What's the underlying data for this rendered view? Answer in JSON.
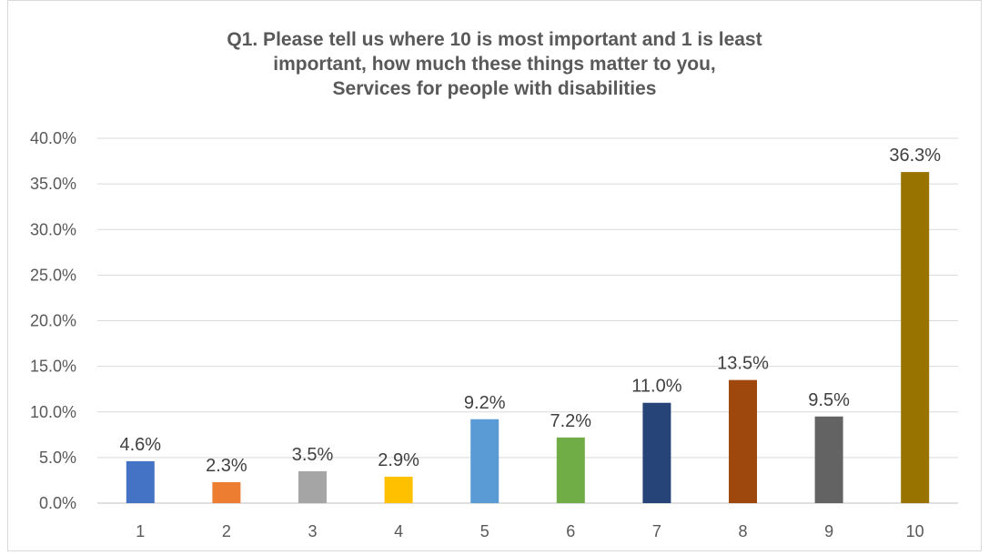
{
  "chart_data": {
    "type": "bar",
    "title_lines": [
      "Q1. Please tell us where 10 is most important and 1 is least",
      "important, how much these things matter to you,",
      "Services for people with disabilities"
    ],
    "categories": [
      "1",
      "2",
      "3",
      "4",
      "5",
      "6",
      "7",
      "8",
      "9",
      "10"
    ],
    "values": [
      4.6,
      2.3,
      3.5,
      2.9,
      9.2,
      7.2,
      11.0,
      13.5,
      9.5,
      36.3
    ],
    "data_labels": [
      "4.6%",
      "2.3%",
      "3.5%",
      "2.9%",
      "9.2%",
      "7.2%",
      "11.0%",
      "13.5%",
      "9.5%",
      "36.3%"
    ],
    "colors": [
      "#4472c4",
      "#ed7d31",
      "#a5a5a5",
      "#ffc000",
      "#5b9bd5",
      "#70ad47",
      "#264478",
      "#9e480e",
      "#636363",
      "#997300"
    ],
    "yticks": [
      "0.0%",
      "5.0%",
      "10.0%",
      "15.0%",
      "20.0%",
      "25.0%",
      "30.0%",
      "35.0%",
      "40.0%"
    ],
    "ylim": [
      0,
      40
    ],
    "grid": true,
    "xlabel": "",
    "ylabel": ""
  }
}
